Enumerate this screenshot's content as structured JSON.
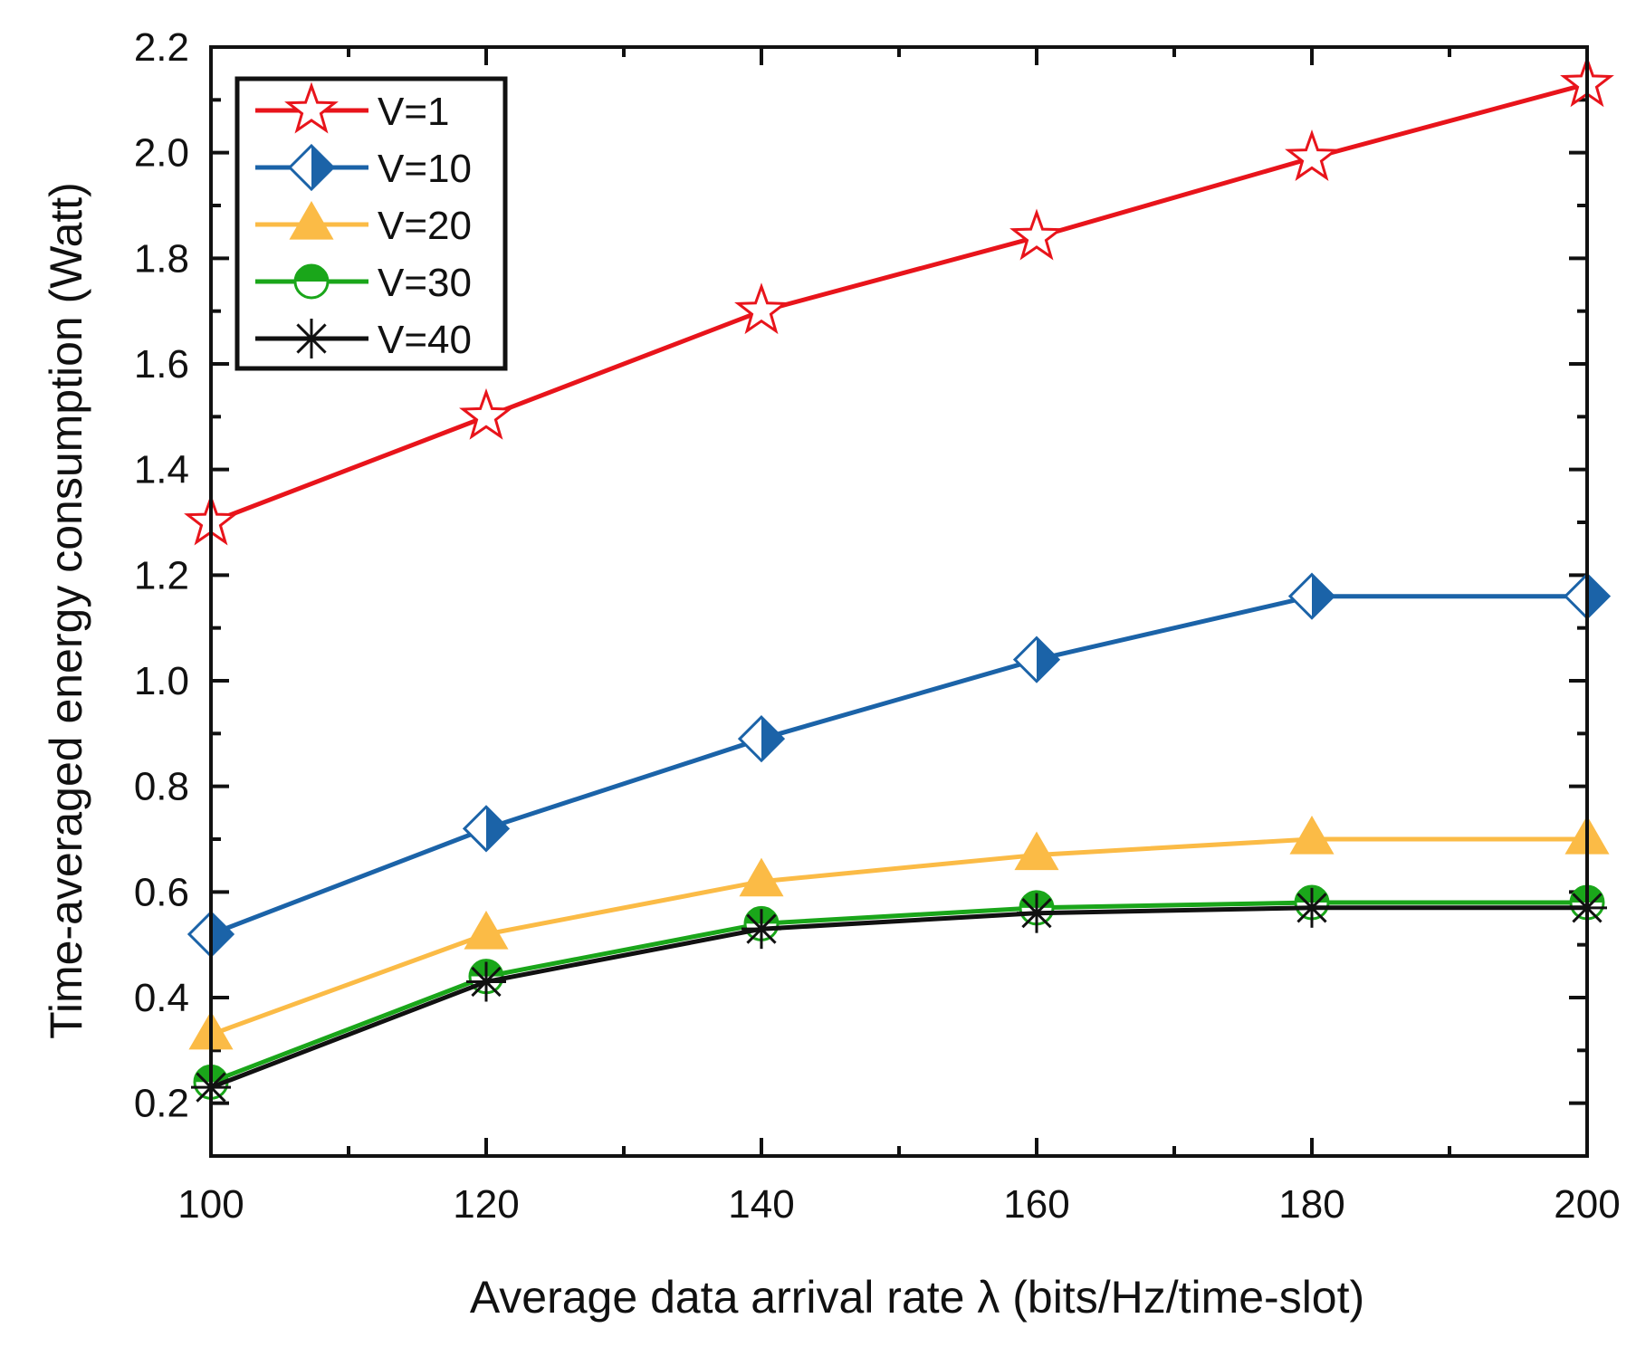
{
  "chart_data": {
    "type": "line",
    "title": "",
    "xlabel": "Average data arrival rate λ  (bits/Hz/time-slot)",
    "ylabel": "Time-averaged energy consumption (Watt)",
    "xlim": [
      100,
      200
    ],
    "ylim": [
      0.1,
      2.2
    ],
    "xticks": [
      100,
      120,
      140,
      160,
      180,
      200
    ],
    "xtick_labels": [
      "100",
      "120",
      "140",
      "160",
      "180",
      "200"
    ],
    "yticks": [
      0.2,
      0.4,
      0.6,
      0.8,
      1.0,
      1.2,
      1.4,
      1.6,
      1.8,
      2.0,
      2.2
    ],
    "ytick_labels": [
      "0.2",
      "0.4",
      "0.6",
      "0.8",
      "1.0",
      "1.2",
      "1.4",
      "1.6",
      "1.8",
      "2.0",
      "2.2"
    ],
    "x": [
      100,
      120,
      140,
      160,
      180,
      200
    ],
    "legend_position": "top-left",
    "series": [
      {
        "name": "V=1",
        "color": "#e8141b",
        "marker": "star",
        "values": [
          1.3,
          1.5,
          1.7,
          1.84,
          1.99,
          2.13
        ]
      },
      {
        "name": "V=10",
        "color": "#1b63a8",
        "marker": "half-diamond",
        "values": [
          0.52,
          0.72,
          0.89,
          1.04,
          1.16,
          1.16
        ]
      },
      {
        "name": "V=20",
        "color": "#fbbb46",
        "marker": "triangle",
        "values": [
          0.33,
          0.52,
          0.62,
          0.67,
          0.7,
          0.7
        ]
      },
      {
        "name": "V=30",
        "color": "#1aa61a",
        "marker": "half-circle",
        "values": [
          0.24,
          0.44,
          0.54,
          0.57,
          0.58,
          0.58
        ]
      },
      {
        "name": "V=40",
        "color": "#111111",
        "marker": "asterisk",
        "values": [
          0.23,
          0.43,
          0.53,
          0.56,
          0.57,
          0.57
        ]
      }
    ]
  }
}
